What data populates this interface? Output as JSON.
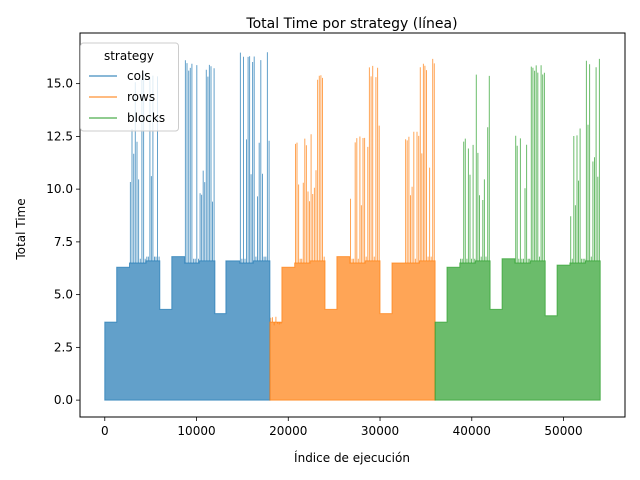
{
  "chart_data": {
    "type": "line",
    "title": "Total Time por strategy (línea)",
    "xlabel": "Índice de ejecución",
    "ylabel": "Total Time",
    "xlim": [
      -2700,
      56700
    ],
    "ylim": [
      -0.8,
      17.4
    ],
    "x_ticks": [
      0,
      10000,
      20000,
      30000,
      40000,
      50000
    ],
    "y_ticks": [
      0.0,
      2.5,
      5.0,
      7.5,
      10.0,
      12.5,
      15.0
    ],
    "x_tick_labels": [
      "0",
      "10000",
      "20000",
      "30000",
      "40000",
      "50000"
    ],
    "y_tick_labels": [
      "0.0",
      "2.5",
      "5.0",
      "7.5",
      "10.0",
      "12.5",
      "15.0"
    ],
    "grid": false,
    "legend": {
      "title": "strategy",
      "placement": "top-left"
    },
    "series": [
      {
        "name": "cols",
        "color": "#1f77b4",
        "x_range": [
          0,
          18000
        ],
        "segments": [
          [
            0,
            1300,
            3.7,
            3.9
          ],
          [
            1300,
            2700,
            6.3,
            6.4
          ],
          [
            2700,
            4500,
            6.5,
            15.6
          ],
          [
            4500,
            6000,
            6.6,
            15.6
          ],
          [
            6000,
            7300,
            4.3,
            4.4
          ],
          [
            7300,
            8700,
            6.8,
            6.9
          ],
          [
            8700,
            10300,
            6.5,
            16.2
          ],
          [
            10300,
            12000,
            6.6,
            15.9
          ],
          [
            12000,
            13200,
            4.1,
            4.2
          ],
          [
            13200,
            14700,
            6.6,
            6.7
          ],
          [
            14700,
            16200,
            6.5,
            16.6
          ],
          [
            16200,
            18000,
            6.6,
            16.6
          ]
        ]
      },
      {
        "name": "rows",
        "color": "#ff7f0e",
        "x_range": [
          18000,
          36000
        ],
        "segments": [
          [
            18000,
            19300,
            3.7,
            4.1
          ],
          [
            19300,
            20700,
            6.3,
            6.4
          ],
          [
            20700,
            22400,
            6.5,
            12.4
          ],
          [
            22400,
            24000,
            6.6,
            15.6
          ],
          [
            24000,
            25300,
            4.3,
            4.5
          ],
          [
            25300,
            26700,
            6.8,
            6.9
          ],
          [
            26700,
            28400,
            6.5,
            12.5
          ],
          [
            28400,
            30000,
            6.6,
            15.9
          ],
          [
            30000,
            31300,
            4.1,
            4.2
          ],
          [
            31300,
            32700,
            6.5,
            6.6
          ],
          [
            32700,
            34300,
            6.5,
            12.8
          ],
          [
            34300,
            36000,
            6.6,
            16.2
          ]
        ]
      },
      {
        "name": "blocks",
        "color": "#2ca02c",
        "x_range": [
          36000,
          54000
        ],
        "segments": [
          [
            36000,
            37300,
            3.7,
            3.8
          ],
          [
            37300,
            38700,
            6.3,
            6.5
          ],
          [
            38700,
            40400,
            6.5,
            12.5
          ],
          [
            40400,
            42000,
            6.6,
            15.9
          ],
          [
            42000,
            43300,
            4.3,
            4.4
          ],
          [
            43300,
            44700,
            6.7,
            6.8
          ],
          [
            44700,
            46400,
            6.5,
            12.6
          ],
          [
            46400,
            48000,
            6.6,
            15.9
          ],
          [
            48000,
            49300,
            4.0,
            4.2
          ],
          [
            49300,
            50700,
            6.4,
            6.6
          ],
          [
            50700,
            52400,
            6.5,
            12.9
          ],
          [
            52400,
            54000,
            6.6,
            16.2
          ]
        ]
      }
    ]
  }
}
